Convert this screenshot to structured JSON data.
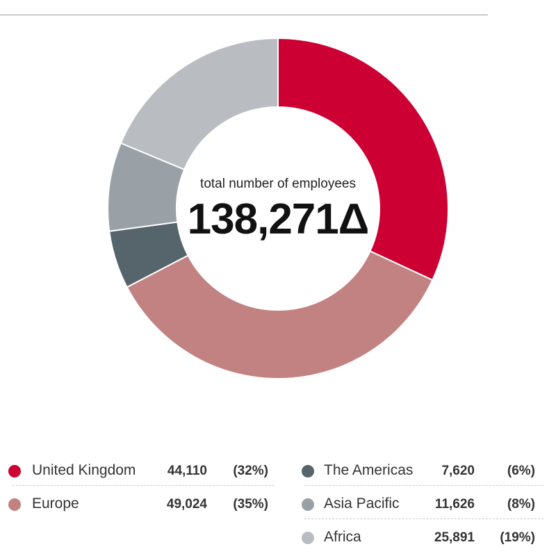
{
  "chart_data": {
    "type": "pie",
    "center_label": "total number of employees",
    "center_value": "138,271Δ",
    "slices": [
      {
        "label": "United Kingdom",
        "value": 44110,
        "value_text": "44,110",
        "percent_text": "(32%)",
        "color": "#cc0033"
      },
      {
        "label": "Europe",
        "value": 49024,
        "value_text": "49,024",
        "percent_text": "(35%)",
        "color": "#c38282"
      },
      {
        "label": "The Americas",
        "value": 7620,
        "value_text": "7,620",
        "percent_text": "(6%)",
        "color": "#56646b"
      },
      {
        "label": "Asia Pacific",
        "value": 11626,
        "value_text": "11,626",
        "percent_text": "(8%)",
        "color": "#99a1a7"
      },
      {
        "label": "Africa",
        "value": 25891,
        "value_text": "25,891",
        "percent_text": "(19%)",
        "color": "#b9bdc2"
      }
    ],
    "total": 138271,
    "legend_position": "bottom"
  }
}
